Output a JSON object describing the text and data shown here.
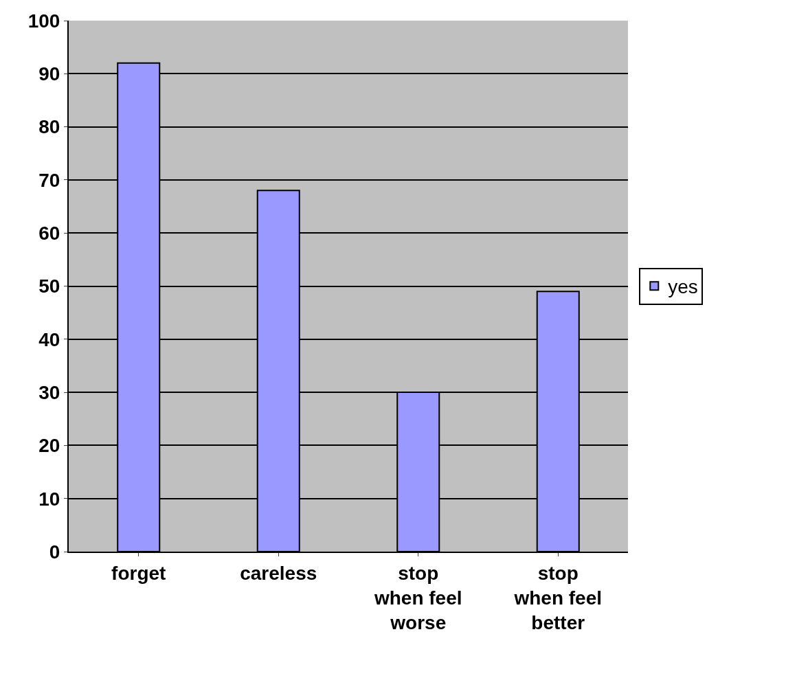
{
  "chart_data": {
    "type": "bar",
    "categories": [
      "forget",
      "careless",
      "stop\nwhen feel\nworse",
      "stop\nwhen feel\nbetter"
    ],
    "series": [
      {
        "name": "yes",
        "color": "#9999ff",
        "values": [
          92,
          68,
          30,
          49
        ]
      }
    ],
    "ylim": [
      0,
      100
    ],
    "yticks": [
      0,
      10,
      20,
      30,
      40,
      50,
      60,
      70,
      80,
      90,
      100
    ],
    "grid": "y",
    "legend": "right"
  }
}
